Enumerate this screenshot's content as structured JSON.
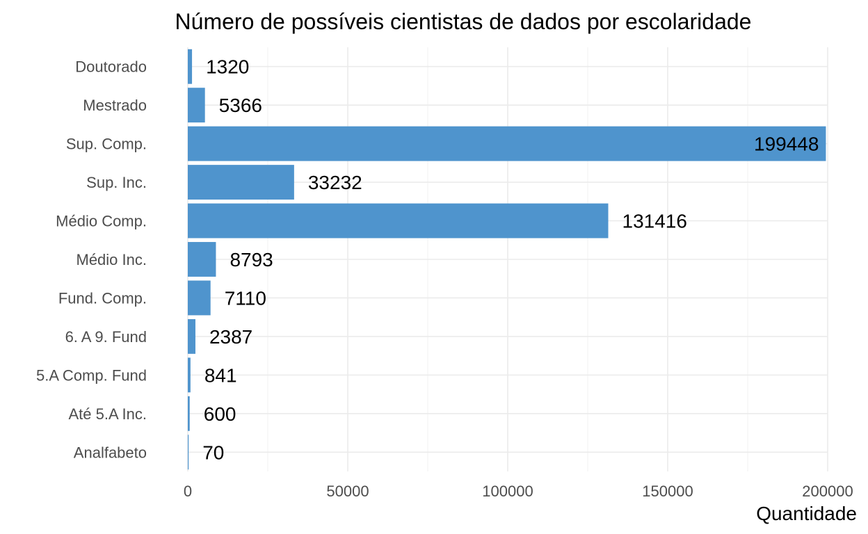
{
  "chart_data": {
    "type": "bar",
    "orientation": "horizontal",
    "title": "Número de possíveis cientistas de dados por escolaridade",
    "xlabel": "Quantidade",
    "ylabel": "",
    "categories": [
      "Doutorado",
      "Mestrado",
      "Sup. Comp.",
      "Sup. Inc.",
      "Médio Comp.",
      "Médio Inc.",
      "Fund. Comp.",
      "6. A 9. Fund",
      "5.A Comp. Fund",
      "Até 5.A Inc.",
      "Analfabeto"
    ],
    "values": [
      1320,
      5366,
      199448,
      33232,
      131416,
      8793,
      7110,
      2387,
      841,
      600,
      70
    ],
    "data_labels": [
      "1320",
      "5366",
      "199448",
      "33232",
      "131416",
      "8793",
      "7110",
      "2387",
      "841",
      "600",
      "70"
    ],
    "xlim": [
      0,
      200000
    ],
    "x_ticks": [
      0,
      50000,
      100000,
      150000,
      200000
    ],
    "x_tick_labels": [
      "0",
      "50000",
      "100000",
      "150000",
      "200000"
    ],
    "bar_color": "#4f94cd",
    "grid": true,
    "legend": "none"
  }
}
